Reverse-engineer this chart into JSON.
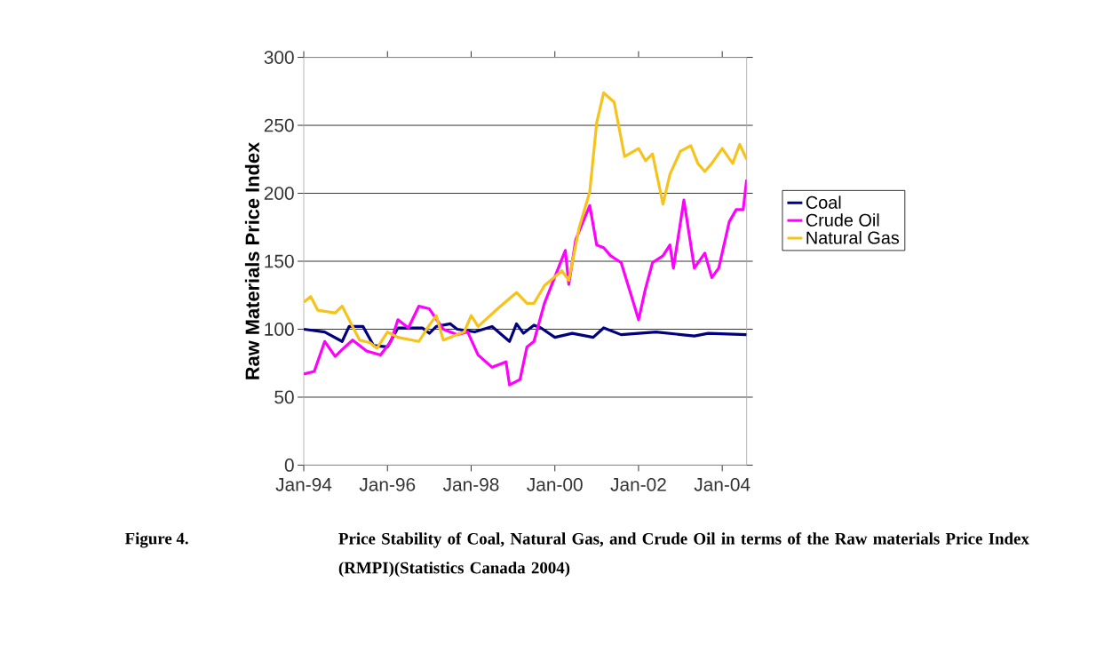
{
  "chart_data": {
    "type": "line",
    "ylabel": "Raw Materials Price Index",
    "annotations": [
      "Figure 4.",
      "Price Stability of Coal, Natural Gas, and Crude Oil in terms of the Raw materials Price Index (RMPI)(Statistics Canada 2004)"
    ],
    "xlim": [
      "1994-01",
      "2004-08"
    ],
    "ylim": [
      0,
      300
    ],
    "xticks": [
      {
        "value": "1994-01",
        "label": "Jan-94"
      },
      {
        "value": "1996-01",
        "label": "Jan-96"
      },
      {
        "value": "1998-01",
        "label": "Jan-98"
      },
      {
        "value": "2000-01",
        "label": "Jan-00"
      },
      {
        "value": "2002-01",
        "label": "Jan-02"
      },
      {
        "value": "2004-01",
        "label": "Jan-04"
      }
    ],
    "yticks": [
      0,
      50,
      100,
      150,
      200,
      250,
      300
    ],
    "grid": "y",
    "legend": "right",
    "marker": "none",
    "line_style": "solid",
    "series": [
      {
        "name": "Coal",
        "color": "#000080",
        "x": [
          "1994-01",
          "1994-07",
          "1994-12",
          "1995-02",
          "1995-06",
          "1995-09",
          "1996-01",
          "1996-04",
          "1996-11",
          "1997-01",
          "1997-03",
          "1997-07",
          "1997-09",
          "1998-02",
          "1998-07",
          "1998-12",
          "1999-02",
          "1999-04",
          "1999-07",
          "1999-09",
          "2000-01",
          "2000-06",
          "2000-12",
          "2001-03",
          "2001-08",
          "2002-06",
          "2003-05",
          "2003-09",
          "2004-08"
        ],
        "values": [
          100,
          98,
          91,
          102,
          102,
          88,
          87,
          101,
          101,
          97,
          102,
          104,
          100,
          98,
          102,
          91,
          104,
          97,
          103,
          101,
          94,
          97,
          94,
          101,
          96,
          98,
          95,
          97,
          96
        ]
      },
      {
        "name": "Crude Oil",
        "color": "#ff00ff",
        "x": [
          "1994-01",
          "1994-04",
          "1994-07",
          "1994-10",
          "1994-12",
          "1995-03",
          "1995-07",
          "1995-11",
          "1996-02",
          "1996-04",
          "1996-07",
          "1996-10",
          "1997-01",
          "1997-05",
          "1997-09",
          "1997-12",
          "1998-03",
          "1998-07",
          "1998-11",
          "1998-12",
          "1999-03",
          "1999-05",
          "1999-07",
          "1999-10",
          "2000-02",
          "2000-04",
          "2000-05",
          "2000-07",
          "2000-11",
          "2001-01",
          "2001-03",
          "2001-05",
          "2001-08",
          "2001-11",
          "2002-01",
          "2002-03",
          "2002-05",
          "2002-08",
          "2002-10",
          "2002-11",
          "2003-02",
          "2003-05",
          "2003-08",
          "2003-10",
          "2003-12",
          "2004-03",
          "2004-05",
          "2004-07",
          "2004-08"
        ],
        "values": [
          67,
          69,
          91,
          80,
          85,
          92,
          84,
          81,
          91,
          107,
          101,
          117,
          115,
          100,
          96,
          98,
          81,
          72,
          76,
          59,
          63,
          87,
          91,
          119,
          145,
          158,
          133,
          166,
          191,
          162,
          160,
          154,
          149,
          124,
          107,
          130,
          149,
          154,
          162,
          145,
          195,
          145,
          156,
          138,
          145,
          179,
          188,
          188,
          210
        ]
      },
      {
        "name": "Natural Gas",
        "color": "#f5c31c",
        "x": [
          "1994-01",
          "1994-03",
          "1994-05",
          "1994-10",
          "1994-12",
          "1995-03",
          "1995-05",
          "1995-08",
          "1995-10",
          "1996-01",
          "1996-04",
          "1996-10",
          "1997-01",
          "1997-03",
          "1997-05",
          "1997-08",
          "1997-11",
          "1998-01",
          "1998-03",
          "1998-09",
          "1999-02",
          "1999-05",
          "1999-07",
          "1999-10",
          "2000-03",
          "2000-05",
          "2000-08",
          "2000-11",
          "2001-01",
          "2001-03",
          "2001-06",
          "2001-09",
          "2002-01",
          "2002-03",
          "2002-05",
          "2002-08",
          "2002-10",
          "2003-01",
          "2003-04",
          "2003-06",
          "2003-08",
          "2003-10",
          "2004-01",
          "2004-04",
          "2004-06",
          "2004-08"
        ],
        "values": [
          120,
          124,
          114,
          112,
          117,
          102,
          92,
          90,
          86,
          98,
          94,
          91,
          103,
          110,
          92,
          95,
          98,
          110,
          102,
          116,
          127,
          119,
          119,
          132,
          143,
          136,
          175,
          201,
          252,
          274,
          267,
          227,
          233,
          224,
          229,
          192,
          214,
          231,
          235,
          222,
          216,
          222,
          233,
          222,
          236,
          225
        ]
      }
    ]
  }
}
